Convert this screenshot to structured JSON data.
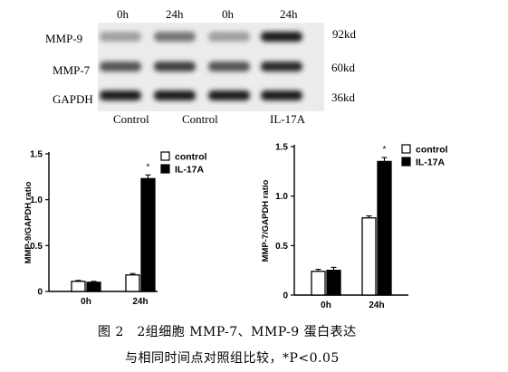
{
  "blot": {
    "time_labels": [
      "0h",
      "24h",
      "0h",
      "24h"
    ],
    "bands": [
      {
        "name": "MMP-9",
        "kd": "92kd",
        "intensity": [
          0.35,
          0.55,
          0.35,
          0.95
        ]
      },
      {
        "name": "MMP-7",
        "kd": "60kd",
        "intensity": [
          0.7,
          0.8,
          0.7,
          0.9
        ]
      },
      {
        "name": "GAPDH",
        "kd": "36kd",
        "intensity": [
          0.95,
          0.95,
          0.95,
          0.95
        ]
      }
    ],
    "group_labels": [
      "Control",
      "Control",
      "IL-17A"
    ]
  },
  "chart_data": [
    {
      "type": "bar",
      "categories": [
        "0h",
        "24h"
      ],
      "series": [
        {
          "name": "control",
          "values": [
            0.11,
            0.18
          ],
          "errors": [
            0.01,
            0.015
          ],
          "color": "#ffffff"
        },
        {
          "name": "IL-17A",
          "values": [
            0.1,
            1.23
          ],
          "errors": [
            0.01,
            0.04
          ],
          "color": "#000000"
        }
      ],
      "ylabel": "MMP-9/GAPDH ratio",
      "xlabel": "",
      "ylim": [
        0,
        1.5
      ],
      "yticks": [
        "0",
        "0.5",
        "1.0",
        "1.5"
      ],
      "significance": "*",
      "legend_position": "top-right"
    },
    {
      "type": "bar",
      "categories": [
        "0h",
        "24h"
      ],
      "series": [
        {
          "name": "control",
          "values": [
            0.24,
            0.78
          ],
          "errors": [
            0.02,
            0.02
          ],
          "color": "#ffffff"
        },
        {
          "name": "IL-17A",
          "values": [
            0.25,
            1.35
          ],
          "errors": [
            0.03,
            0.04
          ],
          "color": "#000000"
        }
      ],
      "ylabel": "MMP-7/GAPDH ratio",
      "xlabel": "",
      "ylim": [
        0,
        1.5
      ],
      "yticks": [
        "0",
        "0.5",
        "1.0",
        "1.5"
      ],
      "significance": "*",
      "legend_position": "top-right"
    }
  ],
  "caption": {
    "line1": "图 2　2组细胞 MMP-7、MMP-9 蛋白表达",
    "line2": "与相同时间点对照组比较，*P<0.05"
  }
}
